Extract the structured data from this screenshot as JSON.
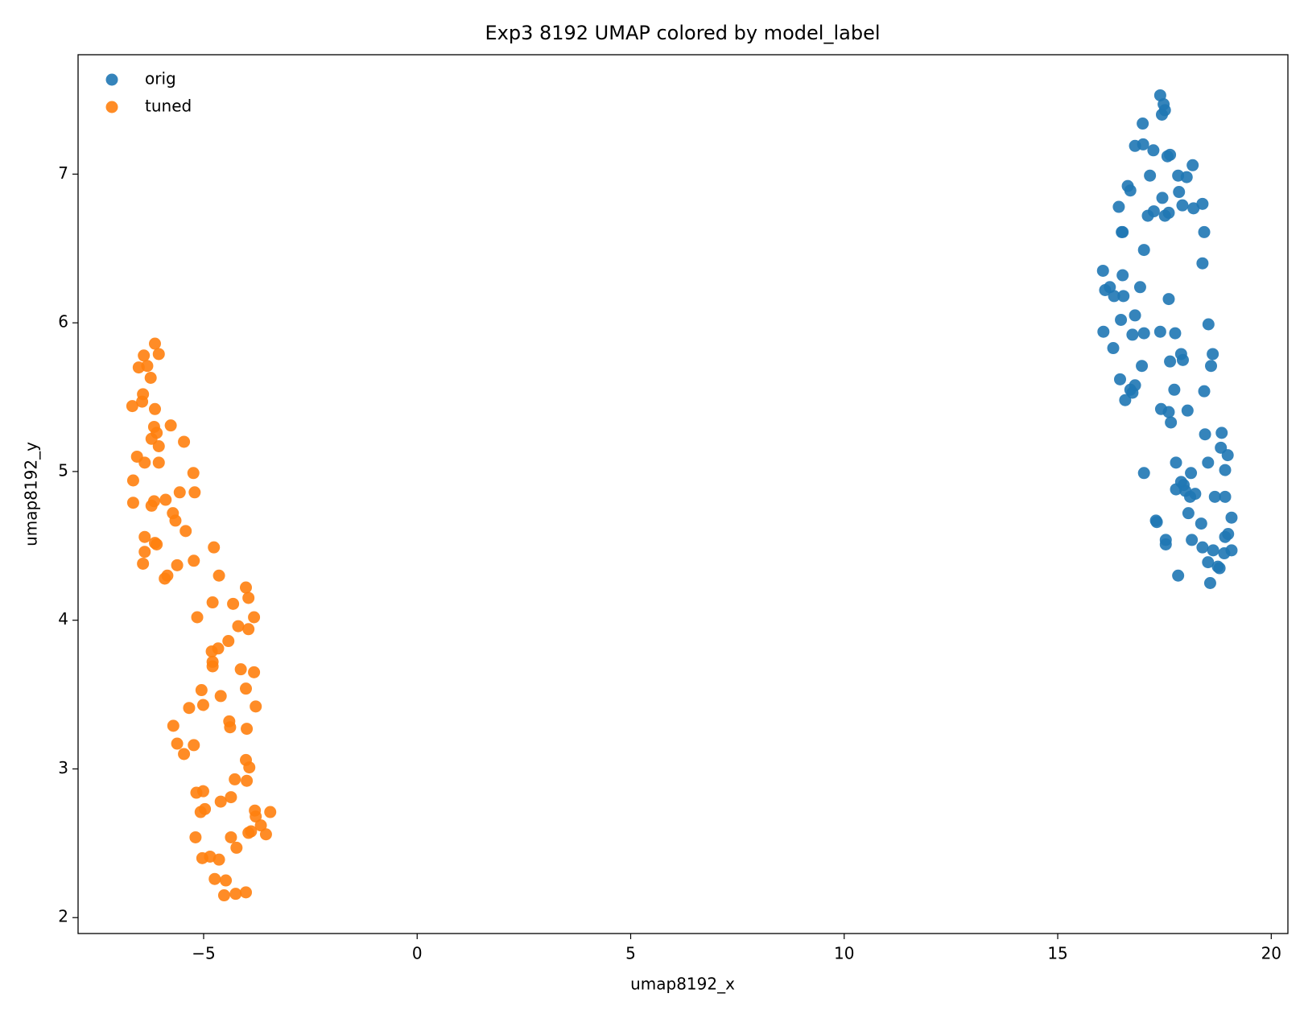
{
  "chart_data": {
    "type": "scatter",
    "title": "Exp3 8192 UMAP colored by model_label",
    "x_label": "umap8192_x",
    "y_label": "umap8192_y",
    "xlim": [
      -7.94,
      20.39
    ],
    "ylim": [
      1.893,
      7.803
    ],
    "xticks": [
      {
        "value": -5,
        "label": "−5"
      },
      0,
      5,
      10,
      15,
      20
    ],
    "yticks": [
      2,
      3,
      4,
      5,
      6,
      7
    ],
    "legend": "upper left",
    "series": [
      {
        "name": "orig",
        "color": "#1f77b4",
        "x": [
          17.4,
          17.48,
          17.51,
          17.44,
          16.99,
          16.81,
          17.0,
          17.24,
          17.63,
          17.57,
          18.16,
          17.16,
          17.82,
          18.02,
          16.64,
          16.7,
          17.84,
          17.45,
          18.39,
          17.92,
          16.43,
          18.18,
          17.25,
          17.6,
          17.11,
          17.51,
          16.5,
          16.52,
          18.43,
          17.02,
          18.39,
          16.06,
          16.52,
          16.22,
          16.11,
          16.93,
          16.32,
          16.54,
          17.6,
          16.81,
          16.48,
          18.53,
          16.07,
          17.4,
          17.75,
          16.75,
          17.02,
          16.3,
          17.89,
          18.63,
          17.93,
          17.63,
          18.59,
          16.97,
          16.46,
          16.81,
          16.7,
          17.73,
          16.75,
          18.43,
          16.58,
          17.42,
          17.6,
          18.04,
          17.65,
          18.45,
          18.84,
          18.82,
          18.98,
          17.77,
          18.52,
          18.92,
          17.02,
          18.12,
          17.89,
          17.95,
          17.77,
          17.99,
          18.22,
          18.1,
          18.68,
          18.92,
          18.06,
          19.07,
          17.3,
          17.32,
          18.36,
          17.53,
          18.99,
          18.92,
          18.14,
          17.53,
          18.39,
          18.64,
          19.07,
          18.9,
          18.52,
          18.75,
          18.79,
          17.82,
          18.57
        ],
        "values": [
          7.53,
          7.47,
          7.43,
          7.4,
          7.34,
          7.19,
          7.2,
          7.16,
          7.13,
          7.12,
          7.06,
          6.99,
          6.99,
          6.98,
          6.92,
          6.89,
          6.88,
          6.84,
          6.8,
          6.79,
          6.78,
          6.77,
          6.75,
          6.74,
          6.72,
          6.72,
          6.61,
          6.61,
          6.61,
          6.49,
          6.4,
          6.35,
          6.32,
          6.24,
          6.22,
          6.24,
          6.18,
          6.18,
          6.16,
          6.05,
          6.02,
          5.99,
          5.94,
          5.94,
          5.93,
          5.92,
          5.93,
          5.83,
          5.79,
          5.79,
          5.75,
          5.74,
          5.71,
          5.71,
          5.62,
          5.58,
          5.55,
          5.55,
          5.53,
          5.54,
          5.48,
          5.42,
          5.4,
          5.41,
          5.33,
          5.25,
          5.26,
          5.16,
          5.11,
          5.06,
          5.06,
          5.01,
          4.99,
          4.99,
          4.93,
          4.91,
          4.88,
          4.87,
          4.85,
          4.83,
          4.83,
          4.83,
          4.72,
          4.69,
          4.67,
          4.66,
          4.65,
          4.54,
          4.58,
          4.56,
          4.54,
          4.51,
          4.49,
          4.47,
          4.47,
          4.45,
          4.39,
          4.36,
          4.35,
          4.3,
          4.25
        ]
      },
      {
        "name": "tuned",
        "color": "#ff7f0e",
        "x": [
          -6.14,
          -6.4,
          -6.05,
          -6.52,
          -6.32,
          -6.24,
          -6.42,
          -6.67,
          -6.44,
          -6.14,
          -5.77,
          -6.16,
          -6.1,
          -6.22,
          -5.46,
          -6.05,
          -6.56,
          -6.38,
          -6.05,
          -5.24,
          -6.65,
          -5.56,
          -5.21,
          -6.65,
          -6.16,
          -5.89,
          -6.22,
          -5.72,
          -5.66,
          -5.42,
          -6.38,
          -6.14,
          -6.1,
          -6.38,
          -5.23,
          -6.42,
          -5.62,
          -4.76,
          -5.85,
          -5.91,
          -4.64,
          -4.01,
          -3.95,
          -4.79,
          -4.31,
          -5.15,
          -3.82,
          -4.19,
          -3.95,
          -4.42,
          -4.66,
          -4.81,
          -4.79,
          -4.79,
          -4.13,
          -3.82,
          -5.05,
          -4.01,
          -4.6,
          -5.01,
          -5.34,
          -3.78,
          -4.4,
          -4.38,
          -5.71,
          -3.99,
          -5.62,
          -5.23,
          -5.46,
          -4.01,
          -3.93,
          -4.27,
          -3.99,
          -5.01,
          -5.17,
          -4.36,
          -4.6,
          -3.8,
          -3.44,
          -4.97,
          -5.07,
          -3.78,
          -3.66,
          -3.89,
          -3.95,
          -3.54,
          -5.19,
          -4.36,
          -4.23,
          -5.03,
          -4.85,
          -4.64,
          -4.74,
          -4.48,
          -4.52,
          -4.25,
          -4.01
        ],
        "values": [
          5.86,
          5.78,
          5.79,
          5.7,
          5.71,
          5.63,
          5.52,
          5.44,
          5.47,
          5.42,
          5.31,
          5.3,
          5.26,
          5.22,
          5.2,
          5.17,
          5.1,
          5.06,
          5.06,
          4.99,
          4.94,
          4.86,
          4.86,
          4.79,
          4.8,
          4.81,
          4.77,
          4.72,
          4.67,
          4.6,
          4.56,
          4.52,
          4.51,
          4.46,
          4.4,
          4.38,
          4.37,
          4.49,
          4.3,
          4.28,
          4.3,
          4.22,
          4.15,
          4.12,
          4.11,
          4.02,
          4.02,
          3.96,
          3.94,
          3.86,
          3.81,
          3.79,
          3.72,
          3.69,
          3.67,
          3.65,
          3.53,
          3.54,
          3.49,
          3.43,
          3.41,
          3.42,
          3.32,
          3.28,
          3.29,
          3.27,
          3.17,
          3.16,
          3.1,
          3.06,
          3.01,
          2.93,
          2.92,
          2.85,
          2.84,
          2.81,
          2.78,
          2.72,
          2.71,
          2.73,
          2.71,
          2.68,
          2.62,
          2.58,
          2.57,
          2.56,
          2.54,
          2.54,
          2.47,
          2.4,
          2.41,
          2.39,
          2.26,
          2.25,
          2.15,
          2.16,
          2.17
        ]
      }
    ]
  }
}
